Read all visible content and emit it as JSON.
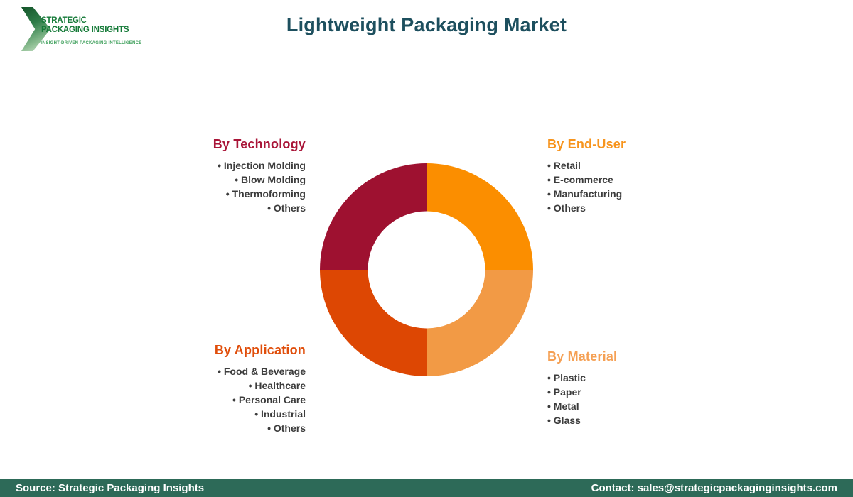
{
  "logo": {
    "line1": "STRATEGIC",
    "line2": "PACKAGING INSIGHTS",
    "tagline": "INSIGHT-DRIVEN PACKAGING INTELLIGENCE"
  },
  "title": "Lightweight Packaging Market",
  "chart_data": {
    "type": "pie",
    "subtype": "donut",
    "title": "Lightweight Packaging Market segmentation",
    "inner_radius_ratio": 0.55,
    "center_color": "#ffffff",
    "start_angle_deg": 0,
    "segments": [
      {
        "name": "By End-User",
        "value": 25,
        "color": "#fb8e00",
        "position": "top-right"
      },
      {
        "name": "By Material",
        "value": 25,
        "color": "#f29a45",
        "position": "bottom-right"
      },
      {
        "name": "By Application",
        "value": 25,
        "color": "#dd4703",
        "position": "bottom-left"
      },
      {
        "name": "By Technology",
        "value": 25,
        "color": "#9e1130",
        "position": "top-left"
      }
    ],
    "legend_position": "around-chart"
  },
  "sections": {
    "technology": {
      "heading": "By Technology",
      "color": "#a91538",
      "items": [
        "Injection Molding",
        "Blow Molding",
        "Thermoforming",
        "Others"
      ]
    },
    "end_user": {
      "heading": "By End-User",
      "color": "#f7941d",
      "items": [
        "Retail",
        "E-commerce",
        "Manufacturing",
        "Others"
      ]
    },
    "application": {
      "heading": "By Application",
      "color": "#e04e0b",
      "items": [
        "Food & Beverage",
        "Healthcare",
        "Personal Care",
        "Industrial",
        "Others"
      ]
    },
    "material": {
      "heading": "By Material",
      "color": "#f5a054",
      "items": [
        "Plastic",
        "Paper",
        "Metal",
        "Glass"
      ]
    }
  },
  "footer": {
    "source": "Source: Strategic Packaging Insights",
    "contact": "Contact: sales@strategicpackaginginsights.com",
    "background": "#2d6a58"
  },
  "colors": {
    "title": "#1d4f5e",
    "logo_green": "#157a38",
    "tagline_green": "#3fa05c",
    "item_text": "#3c3c3c"
  }
}
